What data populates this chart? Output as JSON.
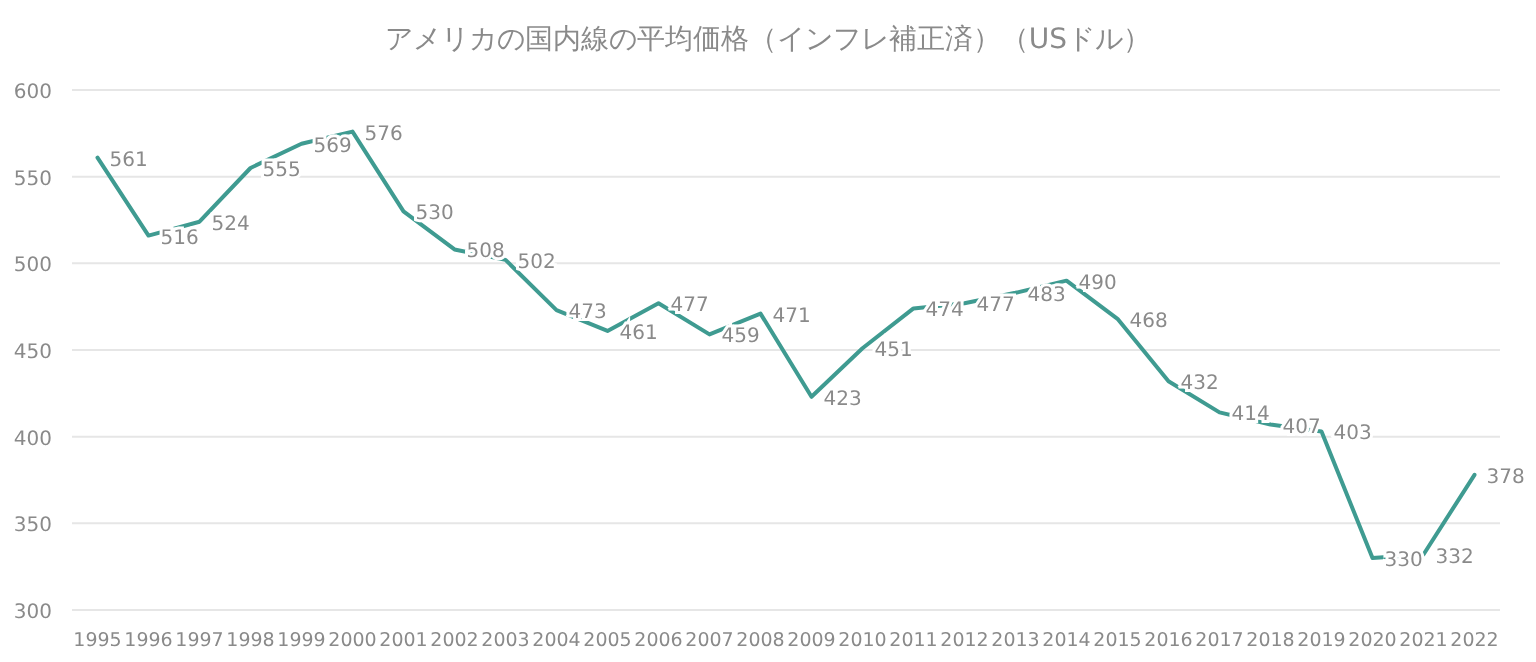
{
  "chart_data": {
    "type": "line",
    "title": "アメリカの国内線の平均価格（インフレ補正済）（USドル）",
    "categories": [
      "1995",
      "1996",
      "1997",
      "1998",
      "1999",
      "2000",
      "2001",
      "2002",
      "2003",
      "2004",
      "2005",
      "2006",
      "2007",
      "2008",
      "2009",
      "2010",
      "2011",
      "2012",
      "2013",
      "2014",
      "2015",
      "2016",
      "2017",
      "2018",
      "2019",
      "2020",
      "2021",
      "2022"
    ],
    "series": [
      {
        "color": "#3f9b91",
        "values": [
          561,
          516,
          524,
          555,
          569,
          576,
          530,
          508,
          502,
          473,
          461,
          477,
          459,
          471,
          423,
          451,
          474,
          477,
          483,
          490,
          468,
          432,
          414,
          407,
          403,
          330,
          332,
          378
        ]
      }
    ],
    "ylim": [
      300,
      600
    ],
    "yticks": [
      300,
      350,
      400,
      450,
      500,
      550,
      600
    ],
    "grid": "y",
    "data_labels": true,
    "marker": "none",
    "line_style": "solid"
  }
}
